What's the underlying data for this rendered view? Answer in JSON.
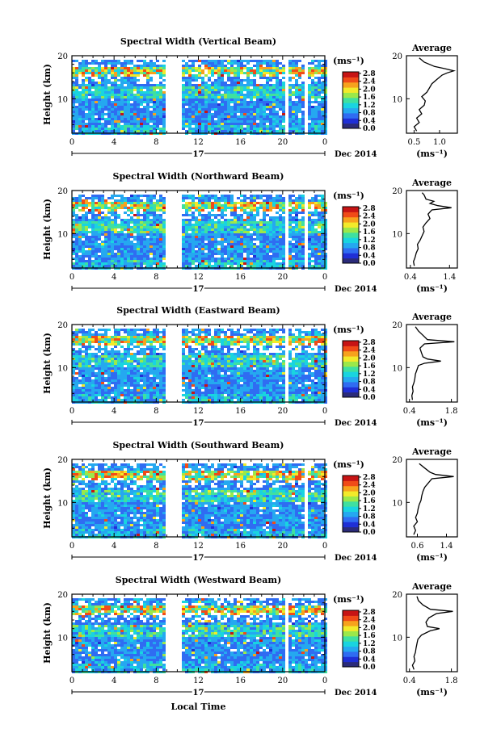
{
  "figure": {
    "x_axis_title": "Local Time",
    "colorbar_unit": "(ms⁻¹)",
    "colorbar_ticks": [
      "0.0",
      "0.4",
      "0.8",
      "1.2",
      "1.6",
      "2.0",
      "2.4",
      "2.8"
    ],
    "colorbar_colors": [
      "#2b2b7a",
      "#1f2fd6",
      "#2f6cf2",
      "#25a8f0",
      "#19d4e0",
      "#3fe0a0",
      "#9be84a",
      "#f2ea2a",
      "#f7a21d",
      "#f04b18",
      "#c71414"
    ],
    "day_label": "17",
    "month_label": "Dec 2014",
    "avg_title": "Average",
    "avg_unit": "(ms⁻¹)"
  },
  "chart_data": [
    {
      "type": "heatmap",
      "title": "Spectral Width (Vertical Beam)",
      "xlabel": "Local Time",
      "ylabel": "Height (km)",
      "xlim": [
        0,
        24
      ],
      "ylim": [
        2,
        20
      ],
      "x_ticks": [
        "0",
        "4",
        "8",
        "12",
        "16",
        "20",
        "0"
      ],
      "y_ticks": [
        "10",
        "20"
      ],
      "colorbar_range": [
        0.0,
        2.8
      ],
      "gaps_hours": [
        [
          9.0,
          10.4
        ],
        [
          5.7,
          5.9
        ],
        [
          18.0,
          18.2
        ],
        [
          20.2,
          20.4
        ],
        [
          22.2,
          22.3
        ],
        [
          22.6,
          22.7
        ]
      ],
      "profile": {
        "title": "Average",
        "xlabel": "(ms⁻¹)",
        "x_ticks": [
          "0.5",
          "1.0"
        ],
        "xlim": [
          0.35,
          1.35
        ],
        "y_ticks": [
          "10",
          "20"
        ],
        "ylim": [
          2,
          20
        ],
        "height_km": [
          2.5,
          3.5,
          4.5,
          5.5,
          6.5,
          7.5,
          8.5,
          9.5,
          10.5,
          11.5,
          12.5,
          13.5,
          14.5,
          15.5,
          16.0,
          16.5,
          17.0,
          17.5,
          18.5,
          19.5
        ],
        "value": [
          0.55,
          0.5,
          0.6,
          0.55,
          0.65,
          0.6,
          0.7,
          0.72,
          0.65,
          0.75,
          0.8,
          0.85,
          0.95,
          1.05,
          1.15,
          1.28,
          1.1,
          0.9,
          0.7,
          0.6
        ]
      }
    },
    {
      "type": "heatmap",
      "title": "Spectral Width (Northward Beam)",
      "xlabel": "Local Time",
      "ylabel": "Height (km)",
      "xlim": [
        0,
        24
      ],
      "ylim": [
        2,
        20
      ],
      "x_ticks": [
        "0",
        "4",
        "8",
        "12",
        "16",
        "20",
        "0"
      ],
      "y_ticks": [
        "10",
        "20"
      ],
      "colorbar_range": [
        0.0,
        2.8
      ],
      "gaps_hours": [
        [
          9.0,
          10.4
        ],
        [
          5.7,
          5.9
        ],
        [
          7.3,
          7.5
        ],
        [
          18.0,
          18.2
        ],
        [
          20.2,
          20.4
        ],
        [
          22.2,
          22.3
        ],
        [
          22.6,
          22.7
        ]
      ],
      "profile": {
        "title": "Average",
        "xlabel": "(ms⁻¹)",
        "x_ticks": [
          "0.4",
          "1.4"
        ],
        "xlim": [
          0.3,
          1.6
        ],
        "y_ticks": [
          "10",
          "20"
        ],
        "ylim": [
          2,
          20
        ],
        "height_km": [
          2.5,
          3.5,
          4.5,
          5.5,
          6.5,
          7.5,
          8.5,
          9.5,
          10.5,
          11.5,
          12.5,
          13.5,
          14.5,
          15.5,
          16.0,
          16.5,
          17.0,
          17.5,
          18.0,
          19.0,
          19.5
        ],
        "value": [
          0.5,
          0.48,
          0.52,
          0.55,
          0.6,
          0.58,
          0.65,
          0.7,
          0.75,
          0.72,
          0.8,
          0.9,
          0.85,
          0.95,
          1.45,
          1.1,
          0.9,
          1.0,
          0.8,
          0.75,
          0.7
        ]
      }
    },
    {
      "type": "heatmap",
      "title": "Spectral Width (Eastward Beam)",
      "xlabel": "Local Time",
      "ylabel": "Height (km)",
      "xlim": [
        0,
        24
      ],
      "ylim": [
        2,
        20
      ],
      "x_ticks": [
        "0",
        "4",
        "8",
        "12",
        "16",
        "20",
        "0"
      ],
      "y_ticks": [
        "10",
        "20"
      ],
      "colorbar_range": [
        0.0,
        2.8
      ],
      "gaps_hours": [
        [
          9.0,
          10.4
        ],
        [
          5.7,
          5.9
        ],
        [
          18.0,
          18.2
        ],
        [
          20.2,
          20.4
        ]
      ],
      "profile": {
        "title": "Average",
        "xlabel": "(ms⁻¹)",
        "x_ticks": [
          "0.4",
          "1.8"
        ],
        "xlim": [
          0.3,
          2.0
        ],
        "y_ticks": [
          "10",
          "20"
        ],
        "ylim": [
          2,
          20
        ],
        "height_km": [
          2.5,
          3.5,
          4.5,
          5.5,
          6.5,
          7.5,
          8.5,
          9.5,
          10.5,
          11.0,
          11.5,
          12.0,
          12.5,
          13.5,
          14.5,
          15.5,
          16.0,
          16.5,
          17.5,
          18.5,
          19.5
        ],
        "value": [
          0.5,
          0.48,
          0.52,
          0.5,
          0.55,
          0.58,
          0.6,
          0.65,
          0.7,
          0.9,
          1.45,
          1.0,
          0.85,
          0.8,
          0.75,
          0.9,
          1.9,
          1.0,
          0.85,
          0.7,
          0.6
        ]
      }
    },
    {
      "type": "heatmap",
      "title": "Spectral Width (Southward Beam)",
      "xlabel": "Local Time",
      "ylabel": "Height (km)",
      "xlim": [
        0,
        24
      ],
      "ylim": [
        2,
        20
      ],
      "x_ticks": [
        "0",
        "4",
        "8",
        "12",
        "16",
        "20",
        "0"
      ],
      "y_ticks": [
        "10",
        "20"
      ],
      "colorbar_range": [
        0.0,
        2.8
      ],
      "gaps_hours": [
        [
          9.0,
          10.4
        ],
        [
          5.7,
          5.9
        ],
        [
          18.0,
          18.2
        ],
        [
          22.2,
          22.3
        ],
        [
          22.6,
          22.7
        ]
      ],
      "profile": {
        "title": "Average",
        "xlabel": "(ms⁻¹)",
        "x_ticks": [
          "0.6",
          "1.4"
        ],
        "xlim": [
          0.3,
          1.7
        ],
        "y_ticks": [
          "10",
          "20"
        ],
        "ylim": [
          2,
          20
        ],
        "height_km": [
          2.5,
          3.5,
          4.5,
          5.5,
          6.5,
          7.5,
          8.5,
          9.5,
          10.5,
          11.5,
          12.5,
          13.5,
          14.5,
          15.5,
          16.0,
          16.5,
          17.0,
          18.0,
          19.0
        ],
        "value": [
          0.5,
          0.55,
          0.5,
          0.6,
          0.55,
          0.6,
          0.62,
          0.65,
          0.7,
          0.72,
          0.75,
          0.8,
          0.9,
          1.0,
          1.6,
          1.1,
          0.95,
          0.8,
          0.65
        ]
      }
    },
    {
      "type": "heatmap",
      "title": "Spectral Width (Westward Beam)",
      "xlabel": "Local Time",
      "ylabel": "Height (km)",
      "xlim": [
        0,
        24
      ],
      "ylim": [
        2,
        20
      ],
      "x_ticks": [
        "0",
        "4",
        "8",
        "12",
        "16",
        "20",
        "0"
      ],
      "y_ticks": [
        "10",
        "20"
      ],
      "colorbar_range": [
        0.0,
        2.8
      ],
      "gaps_hours": [
        [
          9.0,
          10.4
        ],
        [
          5.7,
          5.9
        ],
        [
          18.0,
          18.2
        ],
        [
          20.2,
          20.4
        ]
      ],
      "profile": {
        "title": "Average",
        "xlabel": "(ms⁻¹)",
        "x_ticks": [
          "0.4",
          "1.8"
        ],
        "xlim": [
          0.3,
          2.0
        ],
        "y_ticks": [
          "10",
          "20"
        ],
        "ylim": [
          2,
          20
        ],
        "height_km": [
          2.5,
          3.5,
          4.5,
          5.5,
          6.5,
          7.5,
          8.5,
          9.5,
          10.5,
          11.5,
          12.0,
          12.5,
          13.5,
          14.5,
          15.5,
          16.0,
          16.5,
          17.5,
          18.5,
          19.5
        ],
        "value": [
          0.55,
          0.5,
          0.58,
          0.55,
          0.6,
          0.62,
          0.65,
          0.68,
          0.8,
          1.1,
          1.4,
          1.0,
          0.95,
          1.05,
          1.3,
          1.85,
          1.1,
          0.85,
          0.7,
          0.65
        ]
      }
    }
  ]
}
